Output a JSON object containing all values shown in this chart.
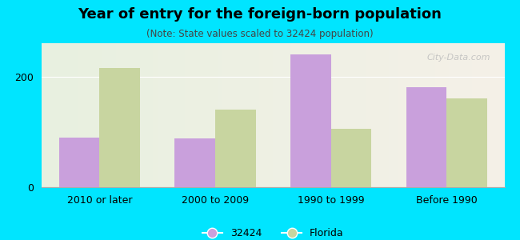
{
  "title": "Year of entry for the foreign-born population",
  "subtitle": "(Note: State values scaled to 32424 population)",
  "categories": [
    "2010 or later",
    "2000 to 2009",
    "1990 to 1999",
    "Before 1990"
  ],
  "values_32424": [
    90,
    88,
    240,
    180
  ],
  "values_florida": [
    215,
    140,
    105,
    160
  ],
  "color_32424": "#c9a0dc",
  "color_florida": "#c8d5a0",
  "background_outer": "#00e5ff",
  "ylim": [
    0,
    260
  ],
  "yticks": [
    0,
    200
  ],
  "bar_width": 0.35,
  "legend_label_32424": "32424",
  "legend_label_florida": "Florida",
  "watermark": "City-Data.com"
}
